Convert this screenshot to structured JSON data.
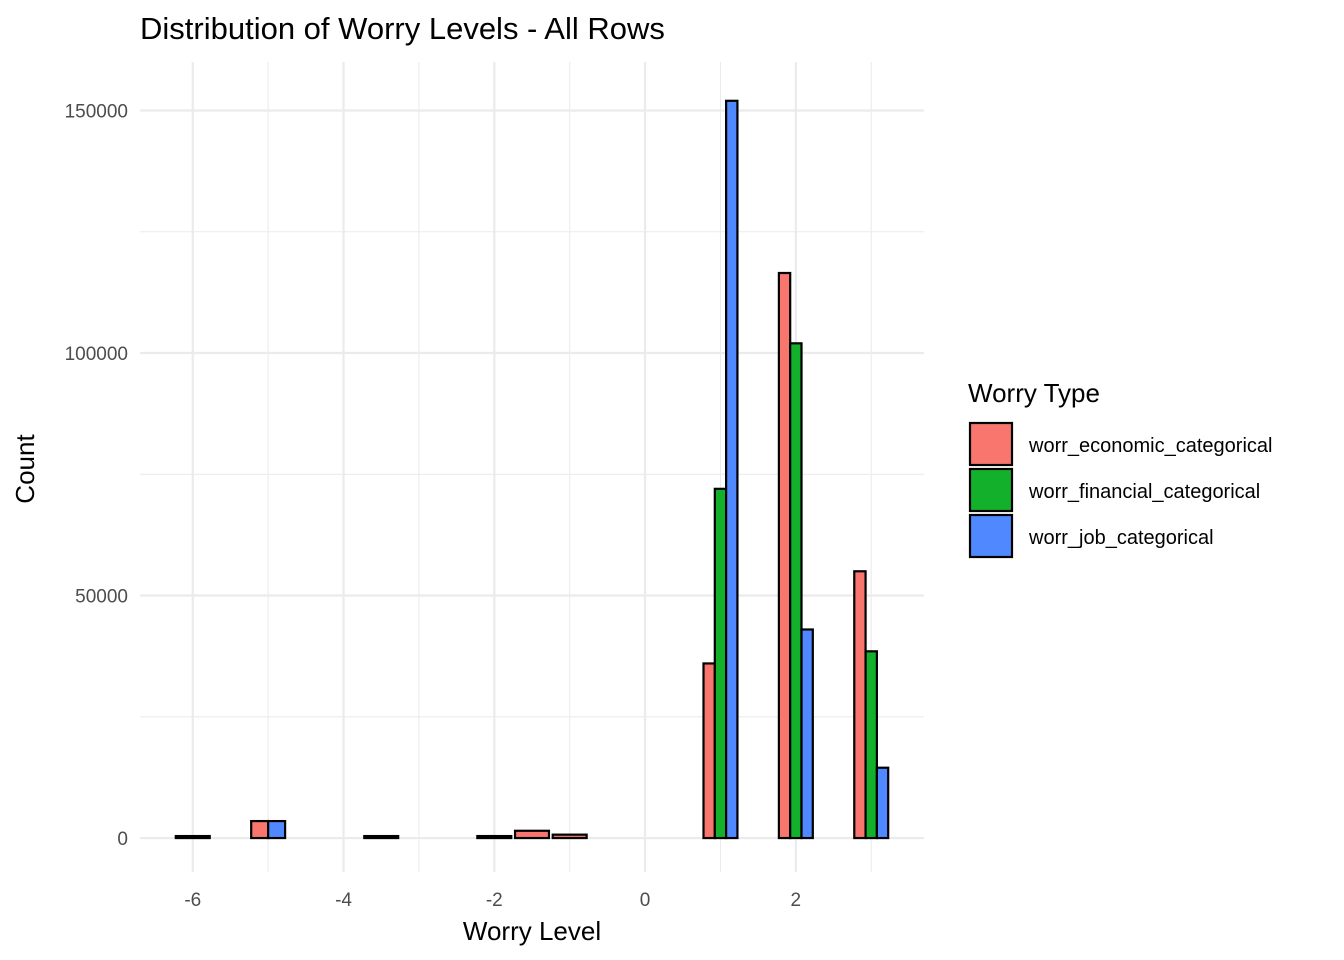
{
  "chart_data": {
    "type": "bar",
    "title": "Distribution of Worry Levels - All Rows",
    "xlabel": "Worry Level",
    "ylabel": "Count",
    "xlim": [
      -6.7,
      3.7
    ],
    "ylim": [
      -7000,
      160000
    ],
    "x_ticks": [
      -6,
      -4,
      -2,
      0,
      2
    ],
    "y_ticks": [
      0,
      50000,
      100000,
      150000
    ],
    "y_tick_labels": [
      "0",
      "50000",
      "100000",
      "150000"
    ],
    "grid": true,
    "legend": {
      "title": "Worry Type",
      "position": "right"
    },
    "series": [
      {
        "name": "worr_economic_categorical",
        "color": "#F8766D",
        "bars": [
          {
            "x": -6,
            "y": 100
          },
          {
            "x": -5,
            "y": 3500
          },
          {
            "x": -3.5,
            "y": 150
          },
          {
            "x": -2,
            "y": 400
          },
          {
            "x": -1.5,
            "y": 1500
          },
          {
            "x": -1,
            "y": 700
          },
          {
            "x": 1,
            "y": 36000
          },
          {
            "x": 2,
            "y": 116500
          },
          {
            "x": 3,
            "y": 55000
          }
        ]
      },
      {
        "name": "worr_financial_categorical",
        "color": "#13B12B",
        "bars": [
          {
            "x": 1,
            "y": 72000
          },
          {
            "x": 2,
            "y": 102000
          },
          {
            "x": 3,
            "y": 38500
          }
        ]
      },
      {
        "name": "worr_job_categorical",
        "color": "#5088FF",
        "bars": [
          {
            "x": -5,
            "y": 3500
          },
          {
            "x": 1,
            "y": 152000
          },
          {
            "x": 2,
            "y": 43000
          },
          {
            "x": 3,
            "y": 14500
          }
        ]
      }
    ]
  }
}
